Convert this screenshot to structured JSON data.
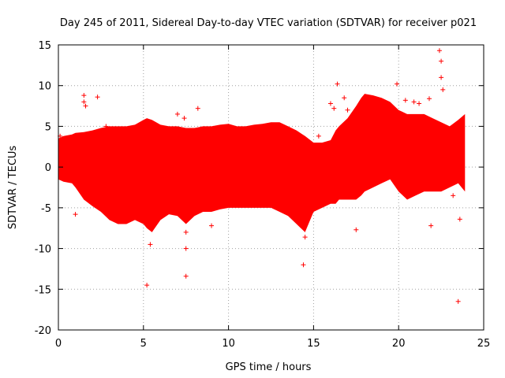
{
  "chart_data": {
    "type": "scatter",
    "title": "Day 245 of 2011, Sidereal Day-to-day VTEC variation (SDTVAR) for receiver p021",
    "xlabel": "GPS time / hours",
    "ylabel": "SDTVAR / TECUs",
    "xlim": [
      0,
      25
    ],
    "ylim": [
      -20,
      15
    ],
    "xticks": [
      0,
      5,
      10,
      15,
      20,
      25
    ],
    "yticks": [
      -20,
      -15,
      -10,
      -5,
      0,
      5,
      10,
      15
    ],
    "grid": true,
    "series": [
      {
        "name": "SDTVAR",
        "color": "#ff0000",
        "marker": "plus",
        "envelope": {
          "x": [
            0.0,
            0.3,
            0.8,
            1.0,
            1.5,
            2.0,
            2.5,
            3.0,
            3.5,
            4.0,
            4.5,
            5.0,
            5.2,
            5.5,
            6.0,
            6.5,
            7.0,
            7.5,
            8.0,
            8.5,
            9.0,
            9.5,
            10.0,
            10.5,
            11.0,
            11.5,
            12.0,
            12.5,
            13.0,
            13.5,
            14.0,
            14.5,
            15.0,
            15.5,
            16.0,
            16.3,
            16.5,
            17.0,
            17.5,
            17.8,
            18.0,
            18.5,
            19.0,
            19.5,
            20.0,
            20.5,
            21.0,
            21.5,
            22.0,
            22.5,
            23.0,
            23.5,
            23.9
          ],
          "upper": [
            3.5,
            3.8,
            4.0,
            4.2,
            4.3,
            4.5,
            4.8,
            5.0,
            5.0,
            5.0,
            5.2,
            5.8,
            6.0,
            5.8,
            5.2,
            5.0,
            5.0,
            4.8,
            4.8,
            5.0,
            5.0,
            5.2,
            5.3,
            5.0,
            5.0,
            5.2,
            5.3,
            5.5,
            5.5,
            5.0,
            4.5,
            3.8,
            3.0,
            3.0,
            3.3,
            4.5,
            5.0,
            6.0,
            7.5,
            8.5,
            9.0,
            8.8,
            8.5,
            8.0,
            7.0,
            6.5,
            6.5,
            6.5,
            6.0,
            5.5,
            5.0,
            5.8,
            6.5
          ],
          "lower": [
            -1.5,
            -1.8,
            -2.0,
            -2.5,
            -4.0,
            -4.8,
            -5.5,
            -6.5,
            -7.0,
            -7.0,
            -6.5,
            -7.0,
            -7.5,
            -8.0,
            -6.5,
            -5.8,
            -6.0,
            -7.0,
            -6.0,
            -5.5,
            -5.5,
            -5.2,
            -5.0,
            -5.0,
            -5.0,
            -5.0,
            -5.0,
            -5.0,
            -5.5,
            -6.0,
            -7.0,
            -8.0,
            -5.5,
            -5.0,
            -4.5,
            -4.5,
            -4.0,
            -4.0,
            -4.0,
            -3.5,
            -3.0,
            -2.5,
            -2.0,
            -1.5,
            -3.0,
            -4.0,
            -3.5,
            -3.0,
            -3.0,
            -3.0,
            -2.5,
            -2.0,
            -3.0
          ]
        },
        "outliers": [
          {
            "x": 0.1,
            "y": 3.8
          },
          {
            "x": 1.0,
            "y": -5.8
          },
          {
            "x": 1.5,
            "y": 8.8
          },
          {
            "x": 1.5,
            "y": 8.0
          },
          {
            "x": 1.6,
            "y": 7.5
          },
          {
            "x": 2.3,
            "y": 8.6
          },
          {
            "x": 2.8,
            "y": 5.0
          },
          {
            "x": 5.2,
            "y": -14.5
          },
          {
            "x": 5.4,
            "y": -9.5
          },
          {
            "x": 7.0,
            "y": 6.5
          },
          {
            "x": 7.4,
            "y": 6.0
          },
          {
            "x": 7.5,
            "y": -13.4
          },
          {
            "x": 7.5,
            "y": -10.0
          },
          {
            "x": 7.5,
            "y": -8.0
          },
          {
            "x": 8.2,
            "y": 7.2
          },
          {
            "x": 9.0,
            "y": -7.2
          },
          {
            "x": 14.4,
            "y": -12.0
          },
          {
            "x": 14.5,
            "y": -8.6
          },
          {
            "x": 14.0,
            "y": 4.0
          },
          {
            "x": 15.3,
            "y": 3.8
          },
          {
            "x": 16.4,
            "y": 10.2
          },
          {
            "x": 16.0,
            "y": 7.8
          },
          {
            "x": 16.2,
            "y": 7.2
          },
          {
            "x": 16.8,
            "y": 8.5
          },
          {
            "x": 17.0,
            "y": 7.0
          },
          {
            "x": 17.5,
            "y": -7.7
          },
          {
            "x": 19.9,
            "y": 10.2
          },
          {
            "x": 20.4,
            "y": 8.2
          },
          {
            "x": 20.9,
            "y": 8.0
          },
          {
            "x": 21.2,
            "y": 7.8
          },
          {
            "x": 21.8,
            "y": 8.4
          },
          {
            "x": 21.9,
            "y": -7.2
          },
          {
            "x": 22.4,
            "y": 14.3
          },
          {
            "x": 22.5,
            "y": 13.0
          },
          {
            "x": 22.5,
            "y": 11.0
          },
          {
            "x": 22.6,
            "y": 9.5
          },
          {
            "x": 23.5,
            "y": -16.5
          },
          {
            "x": 23.6,
            "y": -6.4
          },
          {
            "x": 23.2,
            "y": -3.5
          }
        ]
      }
    ]
  }
}
